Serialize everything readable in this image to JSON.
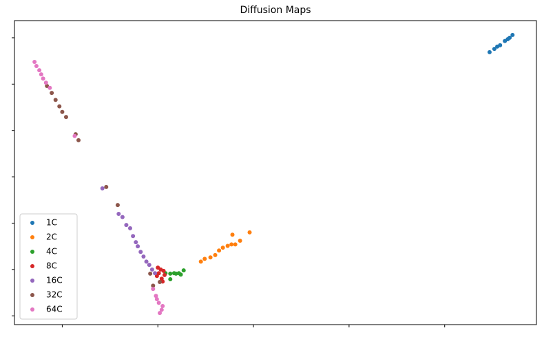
{
  "chart_data": {
    "type": "scatter",
    "title": "Diffusion Maps",
    "xlim": [
      -1.5,
      3.96
    ],
    "ylim": [
      -0.19,
      6.37
    ],
    "xticks": [
      -1,
      0,
      1,
      2,
      3
    ],
    "yticks": [
      0,
      1,
      2,
      3,
      4,
      5,
      6
    ],
    "legend": "lower left",
    "series": [
      {
        "name": "1C",
        "color": "#1f77b4",
        "x": [
          3.47,
          3.52,
          3.55,
          3.58,
          3.63,
          3.66,
          3.68,
          3.71
        ],
        "y": [
          5.69,
          5.76,
          5.81,
          5.84,
          5.93,
          5.97,
          6.0,
          6.06
        ]
      },
      {
        "name": "2C",
        "color": "#ff7f0e",
        "x": [
          0.45,
          0.49,
          0.55,
          0.6,
          0.64,
          0.68,
          0.73,
          0.77,
          0.81,
          0.86,
          0.78,
          0.96
        ],
        "y": [
          1.17,
          1.23,
          1.26,
          1.31,
          1.41,
          1.47,
          1.51,
          1.54,
          1.54,
          1.62,
          1.75,
          1.8
        ]
      },
      {
        "name": "4C",
        "color": "#2ca02c",
        "x": [
          0.08,
          0.13,
          0.17,
          0.19,
          0.22,
          0.27,
          0.13,
          0.24
        ],
        "y": [
          0.92,
          0.91,
          0.92,
          0.91,
          0.92,
          0.98,
          0.79,
          0.89
        ]
      },
      {
        "name": "8C",
        "color": "#d62728",
        "x": [
          0,
          0.03,
          0.06,
          0.01,
          0.07,
          0.04,
          0.05,
          -0.01
        ],
        "y": [
          1.04,
          1.0,
          0.97,
          0.92,
          0.88,
          0.8,
          0.74,
          0.86
        ]
      },
      {
        "name": "16C",
        "color": "#9467bd",
        "x": [
          -0.58,
          -0.41,
          -0.37,
          -0.33,
          -0.29,
          -0.26,
          -0.23,
          -0.21,
          -0.18,
          -0.15,
          -0.12,
          -0.09,
          -0.06,
          -0.03
        ],
        "y": [
          2.75,
          2.2,
          2.13,
          1.96,
          1.89,
          1.72,
          1.59,
          1.5,
          1.38,
          1.28,
          1.17,
          1.1,
          1.0,
          0.92
        ]
      },
      {
        "name": "32C",
        "color": "#8c564b",
        "x": [
          -1.16,
          -1.11,
          -1.07,
          -1.03,
          -1.0,
          -0.96,
          -0.86,
          -0.83,
          -0.54,
          -0.42,
          -0.08,
          -0.05,
          0.02
        ],
        "y": [
          4.96,
          4.81,
          4.66,
          4.52,
          4.4,
          4.29,
          3.92,
          3.79,
          2.78,
          2.39,
          0.91,
          0.65,
          0.73
        ]
      },
      {
        "name": "64C",
        "color": "#e377c2",
        "x": [
          -1.29,
          -1.27,
          -1.24,
          -1.22,
          -1.2,
          -1.17,
          -1.13,
          -0.87,
          -0.05,
          -0.02,
          0.01,
          0.04,
          -0.01,
          0.05,
          0.02
        ],
        "y": [
          5.48,
          5.39,
          5.3,
          5.21,
          5.12,
          5.03,
          4.92,
          3.88,
          0.58,
          0.43,
          0.28,
          0.13,
          0.36,
          0.21,
          0.06
        ]
      }
    ]
  }
}
